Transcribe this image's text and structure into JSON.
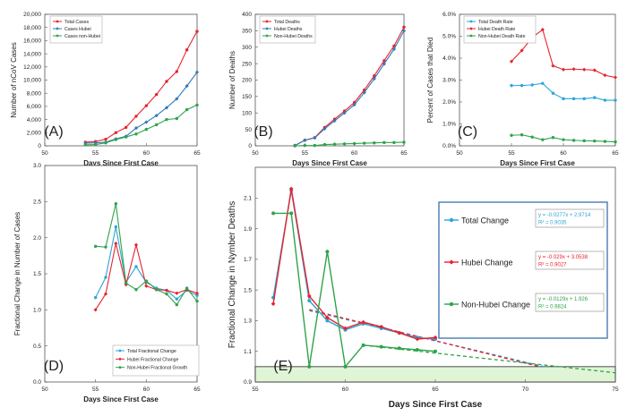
{
  "chart_data": [
    {
      "type": "line",
      "panel_label": "(A)",
      "xlabel": "Days Since First Case",
      "ylabel": "Number of  nCoV Cases",
      "xlim": [
        50,
        65
      ],
      "ylim": [
        0,
        20000
      ],
      "x_ticks": [
        "50",
        "55",
        "60",
        "65"
      ],
      "y_ticks": [
        "0",
        "2,000",
        "4,000",
        "6,000",
        "8,000",
        "10,000",
        "12,000",
        "14,000",
        "16,000",
        "18,000",
        "20,000"
      ],
      "legend_position": "top-left",
      "series": [
        {
          "name": "Total Cases",
          "color": "#e8222e",
          "x": [
            54,
            55,
            56,
            57,
            58,
            59,
            60,
            61,
            62,
            63,
            64,
            65
          ],
          "y": [
            550,
            650,
            1000,
            2000,
            2800,
            4500,
            6100,
            7800,
            9800,
            11300,
            14600,
            17400
          ]
        },
        {
          "name": "Cases Hubei",
          "color": "#2f7bb8",
          "x": [
            54,
            55,
            56,
            57,
            58,
            59,
            60,
            61,
            62,
            63,
            64,
            65
          ],
          "y": [
            400,
            450,
            550,
            1050,
            1450,
            2700,
            3600,
            4600,
            5800,
            7150,
            9100,
            11200
          ]
        },
        {
          "name": "Cases non-Hubei",
          "color": "#2ea34a",
          "x": [
            54,
            55,
            56,
            57,
            58,
            59,
            60,
            61,
            62,
            63,
            64,
            65
          ],
          "y": [
            150,
            200,
            450,
            950,
            1350,
            1800,
            2500,
            3200,
            4000,
            4150,
            5500,
            6200
          ]
        }
      ]
    },
    {
      "type": "line",
      "panel_label": "(B)",
      "xlabel": "Days Since First Case",
      "ylabel": "Number of  Deaths",
      "xlim": [
        50,
        65
      ],
      "ylim": [
        0,
        400
      ],
      "x_ticks": [
        "50",
        "55",
        "60",
        "65"
      ],
      "y_ticks": [
        "0",
        "50",
        "100",
        "150",
        "200",
        "250",
        "300",
        "350",
        "400"
      ],
      "legend_position": "top-left",
      "series": [
        {
          "name": "Total Deaths",
          "color": "#e8222e",
          "x": [
            54,
            55,
            56,
            57,
            58,
            59,
            60,
            61,
            62,
            63,
            64,
            65
          ],
          "y": [
            1,
            17,
            25,
            56,
            81,
            106,
            132,
            170,
            213,
            259,
            304,
            361
          ]
        },
        {
          "name": "Hubei Deaths",
          "color": "#2f7bb8",
          "x": [
            54,
            55,
            56,
            57,
            58,
            59,
            60,
            61,
            62,
            63,
            64,
            65
          ],
          "y": [
            1,
            17,
            24,
            52,
            76,
            100,
            125,
            162,
            204,
            249,
            294,
            350
          ]
        },
        {
          "name": "Non-Hubei Deaths",
          "color": "#2ea34a",
          "x": [
            54,
            55,
            56,
            57,
            58,
            59,
            60,
            61,
            62,
            63,
            64,
            65
          ],
          "y": [
            0,
            1,
            1,
            4,
            5,
            6,
            7,
            8,
            9,
            10,
            10,
            11
          ]
        }
      ]
    },
    {
      "type": "line",
      "panel_label": "(C)",
      "xlabel": "Days Since First Case",
      "ylabel": "Percent of Cases that Died",
      "xlim": [
        50,
        65
      ],
      "ylim": [
        0,
        6
      ],
      "x_ticks": [
        "50",
        "55",
        "60",
        "65"
      ],
      "y_ticks": [
        "0.0%",
        "1.0%",
        "2.0%",
        "3.0%",
        "4.0%",
        "5.0%",
        "6.0%"
      ],
      "legend_position": "top-left",
      "series": [
        {
          "name": "Total Death Rate",
          "color": "#2aa6d8",
          "x": [
            55,
            56,
            57,
            58,
            59,
            60,
            61,
            62,
            63,
            64,
            65
          ],
          "y": [
            2.75,
            2.75,
            2.78,
            2.85,
            2.4,
            2.15,
            2.15,
            2.15,
            2.2,
            2.08,
            2.08
          ]
        },
        {
          "name": "Hubei Death Rate",
          "color": "#e8222e",
          "x": [
            55,
            56,
            57,
            58,
            59,
            60,
            61,
            62,
            63,
            64,
            65
          ],
          "y": [
            3.85,
            4.35,
            4.95,
            5.3,
            3.65,
            3.48,
            3.5,
            3.48,
            3.45,
            3.22,
            3.12
          ]
        },
        {
          "name": "Non-Hubei Death Rate",
          "color": "#2ea34a",
          "x": [
            55,
            56,
            57,
            58,
            59,
            60,
            61,
            62,
            63,
            64,
            65
          ],
          "y": [
            0.48,
            0.5,
            0.4,
            0.28,
            0.38,
            0.28,
            0.25,
            0.23,
            0.22,
            0.2,
            0.18
          ]
        }
      ]
    },
    {
      "type": "line",
      "panel_label": "(D)",
      "xlabel": "Days Since First Case",
      "ylabel": "Fractional Change in Number of Cases",
      "xlim": [
        50,
        65
      ],
      "ylim": [
        0,
        3
      ],
      "x_ticks": [
        "50",
        "55",
        "60",
        "65"
      ],
      "y_ticks": [
        "0.0",
        "0.5",
        "1.0",
        "1.5",
        "2.0",
        "2.5",
        "3.0"
      ],
      "legend_position": "bottom-left",
      "series": [
        {
          "name": "Total Fractional Change",
          "color": "#2aa6d8",
          "x": [
            55,
            56,
            57,
            58,
            59,
            60,
            61,
            62,
            63,
            64,
            65
          ],
          "y": [
            1.17,
            1.45,
            2.15,
            1.38,
            1.6,
            1.38,
            1.3,
            1.27,
            1.15,
            1.27,
            1.2
          ]
        },
        {
          "name": "Hubei Fractional Change",
          "color": "#e8222e",
          "x": [
            55,
            56,
            57,
            58,
            59,
            60,
            61,
            62,
            63,
            64,
            65
          ],
          "y": [
            1.0,
            1.22,
            1.92,
            1.35,
            1.9,
            1.33,
            1.28,
            1.27,
            1.23,
            1.28,
            1.23
          ]
        },
        {
          "name": "Non-Hubei Fractional Growth",
          "color": "#2ea34a",
          "x": [
            55,
            56,
            57,
            58,
            59,
            60,
            61,
            62,
            63,
            64,
            65
          ],
          "y": [
            1.88,
            1.87,
            2.47,
            1.37,
            1.28,
            1.4,
            1.28,
            1.22,
            1.07,
            1.3,
            1.12
          ]
        }
      ]
    },
    {
      "type": "line",
      "panel_label": "(E)",
      "xlabel": "Days Since First Case",
      "ylabel": "Fractional Change in Nymber Deaths",
      "xlim": [
        55,
        75
      ],
      "ylim": [
        0.9,
        2.3
      ],
      "x_ticks": [
        "55",
        "60",
        "65",
        "70",
        "75"
      ],
      "y_ticks": [
        "0.9",
        "1.1",
        "1.3",
        "1.5",
        "1.7",
        "1.9",
        "2.1"
      ],
      "shaded_band": [
        0.9,
        1.0
      ],
      "legend_position": "right",
      "series": [
        {
          "name": "Total Change",
          "color": "#2aa6d8",
          "x": [
            56,
            57,
            58,
            59,
            60,
            61,
            62,
            63,
            64,
            65
          ],
          "y": [
            1.45,
            2.15,
            1.43,
            1.3,
            1.24,
            1.28,
            1.25,
            1.22,
            1.19,
            1.18
          ],
          "trend": {
            "equation": "y = -0.0277x + 2.9714",
            "r2": "R² = 0.9035",
            "from": [
              58,
              1.365
            ],
            "to": [
              71.05,
              1.0
            ]
          }
        },
        {
          "name": "Hubei Change",
          "color": "#e8222e",
          "x": [
            56,
            57,
            58,
            59,
            60,
            61,
            62,
            63,
            64,
            65
          ],
          "y": [
            1.41,
            2.16,
            1.46,
            1.32,
            1.25,
            1.29,
            1.26,
            1.22,
            1.18,
            1.19
          ],
          "trend": {
            "equation": "y = -0.029x + 3.0538",
            "r2": "R² = 0.9027",
            "from": [
              58,
              1.372
            ],
            "to": [
              70.8,
              1.0
            ]
          }
        },
        {
          "name": "Non-Hubei Change",
          "color": "#2ea34a",
          "x": [
            56,
            57,
            58,
            59,
            60,
            61,
            62,
            63,
            64,
            65
          ],
          "y": [
            2.0,
            2.0,
            1.0,
            1.75,
            1.0,
            1.14,
            1.13,
            1.12,
            1.11,
            1.1
          ],
          "trend": {
            "equation": "y = -0.0129x + 1.926",
            "r2": "R² = 0.9824",
            "from": [
              61,
              1.14
            ],
            "to": [
              75,
              0.96
            ]
          }
        }
      ]
    }
  ]
}
